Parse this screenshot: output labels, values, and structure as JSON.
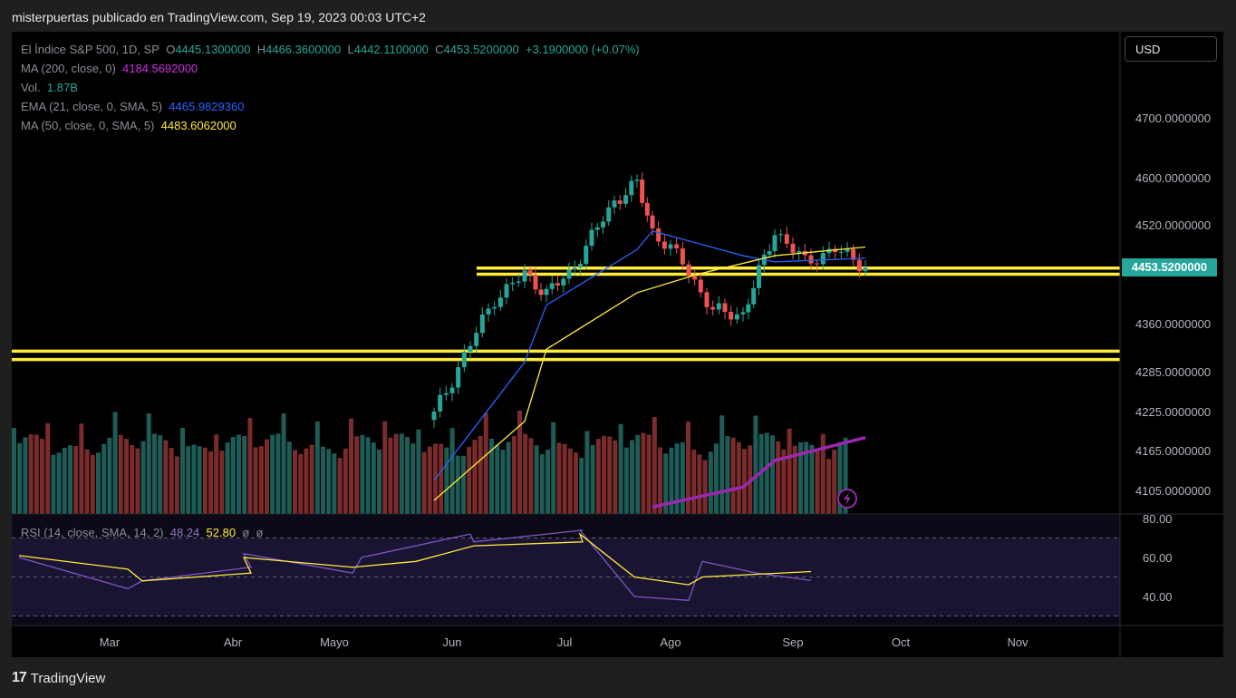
{
  "header": {
    "publisher_text": "misterpuertas publicado en TradingView.com, Sep 19, 2023 00:03 UTC+2"
  },
  "legend": {
    "symbol": "El Índice S&P 500, 1D, SP",
    "ohlc": {
      "o_label": "O",
      "o": "4445.1300000",
      "h_label": "H",
      "h": "4466.3600000",
      "l_label": "L",
      "l": "4442.1100000",
      "c_label": "C",
      "c": "4453.5200000",
      "change": "+3.1900000 (+0.07%)"
    },
    "ma200": {
      "label": "MA (200, close, 0)",
      "value": "4184.5692000"
    },
    "vol": {
      "label": "Vol.",
      "value": "1.87B"
    },
    "ema21": {
      "label": "EMA (21, close, 0, SMA, 5)",
      "value": "4465.9829360"
    },
    "ma50": {
      "label": "MA (50, close, 0, SMA, 5)",
      "value": "4483.6062000"
    }
  },
  "rsi_legend": {
    "label": "RSI (14, close, SMA, 14, 2)",
    "rsi": "48.24",
    "rsi_ma": "52.80",
    "z1": "ø",
    "z2": "ø"
  },
  "currency_button": "USD",
  "last_price_badge": "4453.5200000",
  "branding": {
    "logo_mark": "17",
    "logo_text": "TradingView"
  },
  "colors": {
    "up": "#26a69a",
    "down": "#ef5350",
    "ema": "#2962ff",
    "ma50": "#ffeb3b",
    "ma200": "#9c27b0",
    "rsi": "#7e57c2",
    "hline": "#ffeb3b"
  },
  "chart_data": {
    "type": "candlestick",
    "price_axis_ticks": [
      "4700.0000000",
      "4600.0000000",
      "4520.0000000",
      "4360.0000000",
      "4285.0000000",
      "4225.0000000",
      "4165.0000000",
      "4105.0000000"
    ],
    "rsi_axis_ticks": [
      "80.00",
      "60.00",
      "40.00"
    ],
    "time_axis_labels": [
      "Mar",
      "Abr",
      "Mayo",
      "Jun",
      "Jul",
      "Ago",
      "Sep",
      "Oct",
      "Nov"
    ],
    "horizontal_levels": [
      4450,
      4440,
      4317,
      4304
    ],
    "price_anchors": [
      [
        "Jun",
        4220
      ],
      [
        "Jun",
        4310
      ],
      [
        "Jun",
        4400
      ],
      [
        "Jun",
        4440
      ],
      [
        "Jul",
        4410
      ],
      [
        "Jul",
        4440
      ],
      [
        "Jul",
        4500
      ],
      [
        "Jul",
        4560
      ],
      [
        "Jul",
        4590
      ],
      [
        "Ago",
        4510
      ],
      [
        "Ago",
        4460
      ],
      [
        "Ago",
        4380
      ],
      [
        "Ago",
        4375
      ],
      [
        "Sep",
        4510
      ],
      [
        "Sep",
        4460
      ],
      [
        "Sep",
        4480
      ],
      [
        "Sep",
        4453.52
      ]
    ],
    "ema21_anchors": [
      [
        "Jun",
        4120
      ],
      [
        "Jun",
        4300
      ],
      [
        "Jul",
        4390
      ],
      [
        "Jul",
        4480
      ],
      [
        "Ago",
        4510
      ],
      [
        "Ago",
        4470
      ],
      [
        "Sep",
        4460
      ],
      [
        "Sep",
        4466
      ]
    ],
    "ma50_anchors": [
      [
        "Jun",
        4090
      ],
      [
        "Jun",
        4210
      ],
      [
        "Jul",
        4320
      ],
      [
        "Jul",
        4410
      ],
      [
        "Ago",
        4440
      ],
      [
        "Sep",
        4470
      ],
      [
        "Sep",
        4484
      ]
    ],
    "ma200_anchors": [
      [
        "Ago",
        4080
      ],
      [
        "Ago",
        4110
      ],
      [
        "Sep",
        4150
      ],
      [
        "Sep",
        4185
      ]
    ],
    "rsi_anchors": [
      [
        "Mar",
        60
      ],
      [
        "Mar",
        44
      ],
      [
        "Abr",
        48
      ],
      [
        "Abr",
        55
      ],
      [
        "Mayo",
        62
      ],
      [
        "Mayo",
        52
      ],
      [
        "Jun",
        60
      ],
      [
        "Jun",
        72
      ],
      [
        "Jul",
        68
      ],
      [
        "Jul",
        74
      ],
      [
        "Ago",
        74
      ],
      [
        "Ago",
        40
      ],
      [
        "Ago",
        38
      ],
      [
        "Sep",
        58
      ],
      [
        "Sep",
        52
      ],
      [
        "Sep",
        48.24
      ]
    ],
    "rsi_ma_anchors": [
      [
        "Mar",
        61
      ],
      [
        "Mar",
        54
      ],
      [
        "Abr",
        48
      ],
      [
        "Abr",
        52
      ],
      [
        "Mayo",
        60
      ],
      [
        "Mayo",
        55
      ],
      [
        "Jun",
        58
      ],
      [
        "Jul",
        66
      ],
      [
        "Jul",
        68
      ],
      [
        "Ago",
        72
      ],
      [
        "Ago",
        50
      ],
      [
        "Ago",
        46
      ],
      [
        "Sep",
        50
      ],
      [
        "Sep",
        52.8
      ]
    ],
    "rsi_band": [
      70,
      50,
      30
    ],
    "volume_last": "1.87B"
  }
}
